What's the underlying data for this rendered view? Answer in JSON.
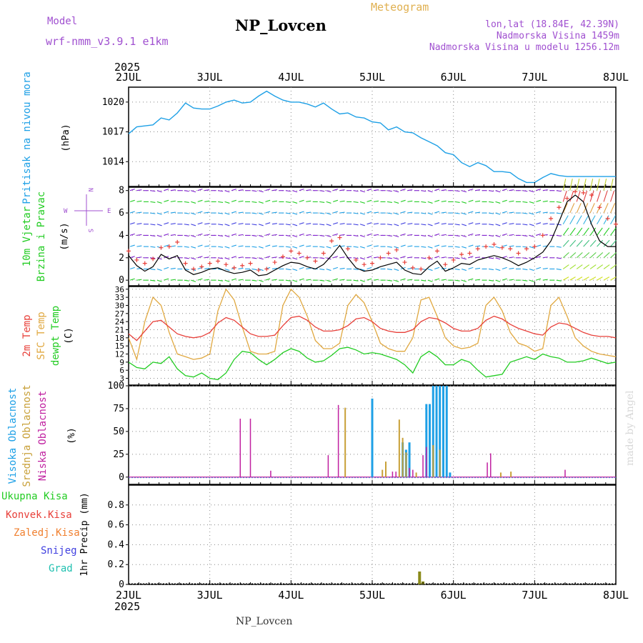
{
  "header": {
    "model_label": "Model",
    "model_name": "wrf-nmm_v3.9.1 e1km",
    "station_title": "NP_Lovcen",
    "product": "Meteogram",
    "lonlat": "lon,lat (18.84E, 42.39N)",
    "elevation": "Nadmorska Visina 1459m",
    "model_elevation": "Nadmorska Visina u modelu 1256.12m",
    "year_top": "2025",
    "year_bottom": "2025",
    "footer_station": "NP_Lovcen",
    "credit": "made by Angel"
  },
  "time_axis": {
    "ticks": [
      "2JUL",
      "3JUL",
      "4JUL",
      "5JUL",
      "6JUL",
      "7JUL",
      "8JUL"
    ],
    "range_days": [
      0,
      6
    ]
  },
  "colors": {
    "pressure": "#1ea0e6",
    "wind_speed": "#000000",
    "gust": "#e8403a",
    "temp_2m": "#e8403a",
    "temp_sfc": "#e0a840",
    "dewpoint": "#22cc22",
    "cloud_high": "#1ea0e6",
    "cloud_mid": "#c8a038",
    "cloud_low": "#c020a0",
    "precip_total": "#22cc22",
    "precip_conv": "#e8403a",
    "precip_frozen": "#f08030",
    "snow": "#4040e0",
    "graupel": "#20c0b0",
    "precip_bar": "#8a8a1a"
  },
  "chart_data": [
    {
      "type": "line",
      "name": "pressure-panel",
      "ylabel_main": "Pritisak na nivou mora",
      "ylabel_unit": "(hPa)",
      "ylim": [
        1011.5,
        1021.5
      ],
      "yticks": [
        1014,
        1017,
        1020
      ],
      "grid": true,
      "x": [
        0,
        0.1,
        0.2,
        0.3,
        0.4,
        0.5,
        0.6,
        0.7,
        0.8,
        0.9,
        1,
        1.1,
        1.2,
        1.3,
        1.4,
        1.5,
        1.6,
        1.7,
        1.8,
        1.9,
        2,
        2.1,
        2.2,
        2.3,
        2.4,
        2.5,
        2.6,
        2.7,
        2.8,
        2.9,
        3,
        3.1,
        3.2,
        3.3,
        3.4,
        3.5,
        3.6,
        3.7,
        3.8,
        3.9,
        4,
        4.1,
        4.2,
        4.3,
        4.4,
        4.5,
        4.6,
        4.7,
        4.8,
        4.9,
        5,
        5.1,
        5.2,
        5.3,
        5.4,
        5.5,
        5.6,
        5.7,
        5.8,
        5.9,
        6
      ],
      "series": [
        {
          "key": "pressure",
          "values": [
            1016.8,
            1017.5,
            1017.6,
            1017.7,
            1018.4,
            1018.2,
            1018.9,
            1019.9,
            1019.4,
            1019.3,
            1019.3,
            1019.6,
            1020.0,
            1020.2,
            1019.9,
            1020.0,
            1020.6,
            1021.1,
            1020.6,
            1020.2,
            1020.0,
            1020.0,
            1019.8,
            1019.5,
            1019.9,
            1019.3,
            1018.8,
            1018.9,
            1018.5,
            1018.4,
            1018.0,
            1017.9,
            1017.2,
            1017.5,
            1017.0,
            1016.9,
            1016.4,
            1016.0,
            1015.6,
            1014.9,
            1014.7,
            1013.9,
            1013.5,
            1013.9,
            1013.6,
            1013.0,
            1013.0,
            1012.9,
            1012.3,
            1011.9,
            1011.9,
            1012.4,
            1012.8,
            1012.6,
            1012.5,
            1012.5,
            1012.5,
            1012.5,
            1012.5,
            1012.5,
            1012.5
          ]
        }
      ]
    },
    {
      "type": "line",
      "name": "wind-panel",
      "ylabel_main": "10m Vjetar",
      "ylabel_sub": "Brzina i Pravac",
      "ylabel_unit": "(m/s)",
      "compass": {
        "north": "N",
        "south": "S",
        "east": "E",
        "west": "W"
      },
      "ylim": [
        -0.5,
        8.3
      ],
      "yticks": [
        0,
        2,
        4,
        6,
        8
      ],
      "grid": true,
      "arrow_rows": [
        0,
        1,
        2,
        3,
        4,
        5,
        6,
        7,
        8
      ],
      "x": [
        0,
        0.1,
        0.2,
        0.3,
        0.4,
        0.5,
        0.6,
        0.7,
        0.8,
        0.9,
        1,
        1.1,
        1.2,
        1.3,
        1.4,
        1.5,
        1.6,
        1.7,
        1.8,
        1.9,
        2,
        2.1,
        2.2,
        2.3,
        2.4,
        2.5,
        2.6,
        2.7,
        2.8,
        2.9,
        3,
        3.1,
        3.2,
        3.3,
        3.4,
        3.5,
        3.6,
        3.7,
        3.8,
        3.9,
        4,
        4.1,
        4.2,
        4.3,
        4.4,
        4.5,
        4.6,
        4.7,
        4.8,
        4.9,
        5,
        5.1,
        5.2,
        5.3,
        5.4,
        5.5,
        5.6,
        5.7,
        5.8,
        5.9,
        6
      ],
      "series": [
        {
          "key": "wind_speed",
          "values": [
            2.2,
            1.3,
            0.8,
            1.2,
            2.3,
            1.9,
            2.2,
            0.9,
            0.5,
            0.7,
            1.0,
            1.1,
            0.8,
            0.6,
            0.7,
            0.9,
            0.4,
            0.5,
            0.9,
            1.3,
            1.6,
            1.5,
            1.2,
            1.0,
            1.4,
            2.2,
            3.1,
            2.0,
            1.1,
            0.8,
            0.9,
            1.2,
            1.4,
            1.6,
            0.9,
            0.6,
            0.5,
            1.2,
            1.7,
            0.8,
            1.1,
            1.5,
            1.4,
            1.8,
            2.0,
            2.2,
            2.0,
            1.7,
            1.3,
            1.6,
            2.0,
            2.5,
            3.5,
            5.2,
            7.0,
            7.6,
            7.0,
            5.0,
            3.5,
            3.0,
            3.0
          ]
        },
        {
          "key": "gust",
          "values": [
            2.6,
            1.8,
            1.5,
            1.9,
            2.9,
            3.0,
            3.4,
            1.5,
            1.0,
            1.2,
            1.5,
            1.7,
            1.4,
            1.1,
            1.3,
            1.5,
            0.9,
            1.0,
            1.6,
            2.1,
            2.6,
            2.4,
            2.0,
            1.7,
            2.4,
            3.5,
            3.8,
            2.8,
            1.8,
            1.4,
            1.5,
            2.0,
            2.4,
            2.7,
            1.6,
            1.1,
            1.0,
            2.0,
            2.6,
            1.4,
            1.8,
            2.3,
            2.4,
            2.8,
            3.0,
            3.2,
            2.9,
            2.8,
            2.4,
            2.8,
            3.0,
            4.0,
            5.5,
            6.5,
            7.3,
            7.9,
            7.8,
            7.6,
            6.5,
            5.5,
            5.0
          ]
        }
      ]
    },
    {
      "type": "line",
      "name": "temperature-panel",
      "ylabel_main": "2m Temp",
      "ylabel_sub": "SFC Temp",
      "ylabel_sub2": "dewpt Temp",
      "ylabel_unit": "(C)",
      "ylim": [
        0.5,
        37
      ],
      "yticks": [
        3,
        6,
        9,
        12,
        15,
        18,
        21,
        24,
        27,
        30,
        33,
        36
      ],
      "grid": true,
      "x": [
        0,
        0.1,
        0.2,
        0.3,
        0.4,
        0.5,
        0.6,
        0.7,
        0.8,
        0.9,
        1,
        1.1,
        1.2,
        1.3,
        1.4,
        1.5,
        1.6,
        1.7,
        1.8,
        1.9,
        2,
        2.1,
        2.2,
        2.3,
        2.4,
        2.5,
        2.6,
        2.7,
        2.8,
        2.9,
        3,
        3.1,
        3.2,
        3.3,
        3.4,
        3.5,
        3.6,
        3.7,
        3.8,
        3.9,
        4,
        4.1,
        4.2,
        4.3,
        4.4,
        4.5,
        4.6,
        4.7,
        4.8,
        4.9,
        5,
        5.1,
        5.2,
        5.3,
        5.4,
        5.5,
        5.6,
        5.7,
        5.8,
        5.9,
        6
      ],
      "series": [
        {
          "key": "temp_2m",
          "values": [
            19.5,
            17.0,
            20.5,
            24.0,
            24.5,
            22.0,
            19.5,
            18.5,
            18.0,
            18.5,
            20.0,
            23.5,
            25.5,
            24.5,
            22.0,
            19.5,
            18.5,
            18.5,
            19.0,
            22.5,
            25.5,
            26.0,
            24.5,
            22.0,
            20.5,
            20.5,
            21.0,
            22.5,
            25.0,
            25.5,
            24.0,
            21.5,
            20.5,
            20.0,
            20.0,
            21.0,
            24.0,
            25.5,
            25.0,
            23.5,
            21.5,
            20.5,
            20.5,
            21.5,
            24.5,
            26.0,
            25.0,
            23.0,
            21.5,
            20.5,
            19.5,
            19.0,
            22.0,
            23.5,
            23.0,
            21.5,
            20.0,
            19.0,
            18.5,
            18.5,
            18.0
          ]
        },
        {
          "key": "temp_sfc",
          "values": [
            18.0,
            10.0,
            24.0,
            33.0,
            30.0,
            20.0,
            12.0,
            11.0,
            10.0,
            10.5,
            12.0,
            28.0,
            36.0,
            32.0,
            22.0,
            13.0,
            12.0,
            12.0,
            13.0,
            30.0,
            36.0,
            33.0,
            26.0,
            17.0,
            14.0,
            14.0,
            16.0,
            30.0,
            34.0,
            31.0,
            24.0,
            16.0,
            14.0,
            13.0,
            13.0,
            18.0,
            32.0,
            33.0,
            26.0,
            18.0,
            15.0,
            14.0,
            14.5,
            16.0,
            30.0,
            33.0,
            28.0,
            20.0,
            16.0,
            15.0,
            13.0,
            14.0,
            30.0,
            33.0,
            26.0,
            18.0,
            15.0,
            13.0,
            12.0,
            11.5,
            11.0
          ]
        },
        {
          "key": "dewpoint",
          "values": [
            9.0,
            7.0,
            6.5,
            9.0,
            8.5,
            11.0,
            6.5,
            4.0,
            3.5,
            5.0,
            3.0,
            2.5,
            5.0,
            10.0,
            13.0,
            12.5,
            10.0,
            8.0,
            10.0,
            12.5,
            14.0,
            13.0,
            10.5,
            9.0,
            9.5,
            11.5,
            14.0,
            14.5,
            13.5,
            12.0,
            12.5,
            12.0,
            11.0,
            10.0,
            8.0,
            5.0,
            11.0,
            13.0,
            11.0,
            8.0,
            8.0,
            10.0,
            9.0,
            6.0,
            3.5,
            4.0,
            4.5,
            9.0,
            10.0,
            11.0,
            10.0,
            12.0,
            11.0,
            10.5,
            9.0,
            9.0,
            9.5,
            10.5,
            9.5,
            8.5,
            9.0
          ]
        }
      ]
    },
    {
      "type": "bar",
      "name": "cloud-panel",
      "ylabel_main": "Visoka Oblacnost",
      "ylabel_sub": "Srednja Oblacnost",
      "ylabel_sub2": "Niska Oblacnost",
      "ylabel_unit": "(%)",
      "ylim": [
        -8,
        100
      ],
      "yticks": [
        0,
        25,
        50,
        75,
        100
      ],
      "grid": true,
      "series": [
        {
          "key": "cloud_high",
          "x": [
            3.0,
            3.375,
            3.417,
            3.458,
            3.667,
            3.708,
            3.75,
            3.792,
            3.833,
            3.875,
            3.917,
            3.958
          ],
          "values": [
            86,
            38,
            30,
            38,
            80,
            80,
            100,
            100,
            100,
            100,
            100,
            5
          ]
        },
        {
          "key": "cloud_mid",
          "x": [
            2.667,
            3.125,
            3.167,
            3.333,
            3.375,
            3.417,
            3.542,
            3.75,
            3.833,
            4.583,
            4.708
          ],
          "values": [
            76,
            8,
            17,
            63,
            43,
            27,
            5,
            35,
            30,
            5,
            6
          ]
        },
        {
          "key": "cloud_low",
          "x": [
            1.375,
            1.5,
            1.75,
            2.458,
            2.583,
            3.25,
            3.292,
            3.458,
            3.5,
            3.625,
            3.667,
            4.417,
            4.458,
            5.375
          ],
          "values": [
            64,
            64,
            7,
            24,
            79,
            6,
            6,
            10,
            8,
            24,
            33,
            16,
            26,
            8
          ]
        }
      ]
    },
    {
      "type": "bar",
      "name": "precip-panel",
      "ylabel_unit": "1hr Precip (mm)",
      "legend": [
        "Ukupna Kisa",
        "Konvek.Kisa",
        "Zaledj.Kisa",
        "Snijeg",
        "Grad"
      ],
      "ylim": [
        0,
        1.0
      ],
      "yticks": [
        0,
        0.2,
        0.4,
        0.6,
        0.8
      ],
      "grid": true,
      "series": [
        {
          "key": "precip_bar",
          "x": [
            3.583,
            3.625
          ],
          "values": [
            0.13,
            0.03
          ]
        }
      ]
    }
  ]
}
